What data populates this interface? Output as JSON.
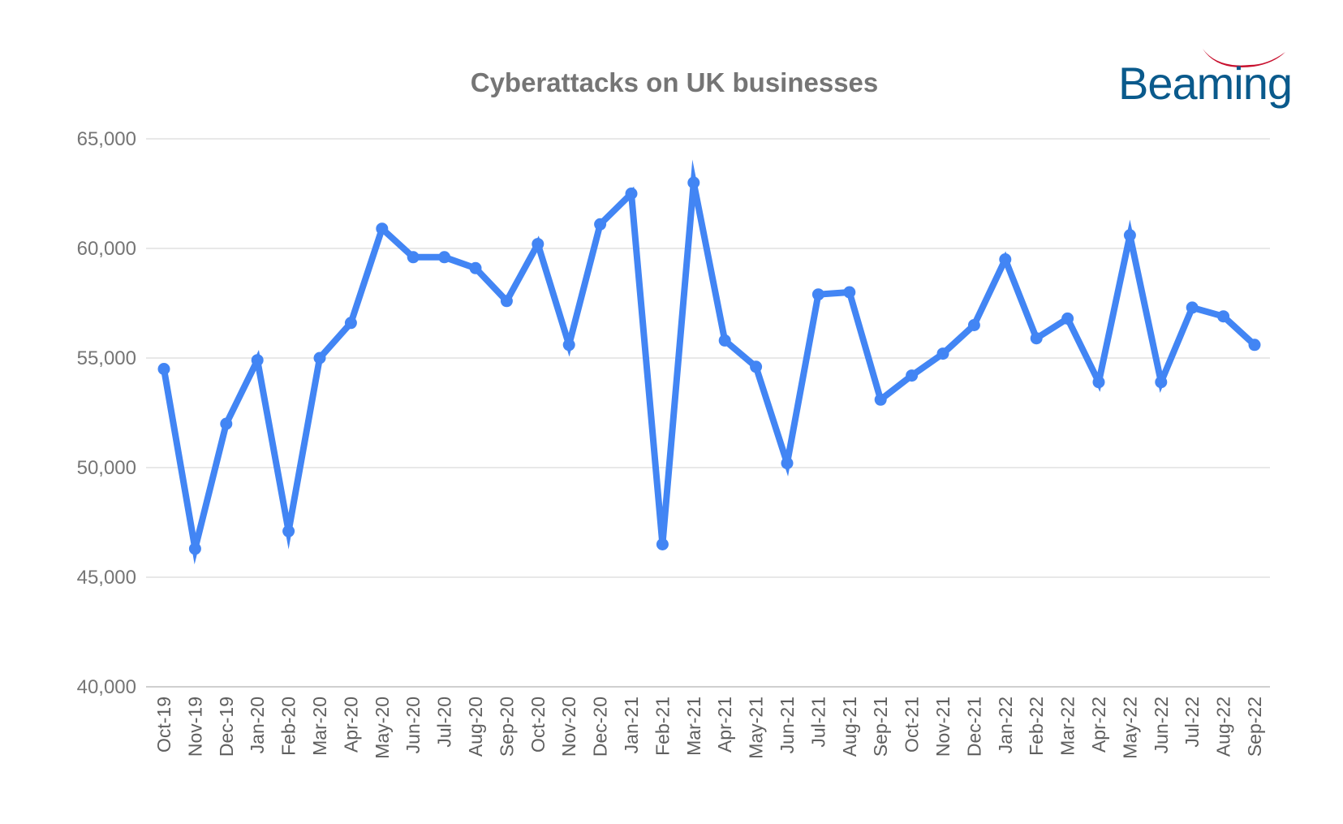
{
  "logo": {
    "text": "Beaming",
    "text_color": "#0a5a8c",
    "swoosh_color": "#c8102e"
  },
  "chart_data": {
    "type": "line",
    "title": "Cyberattacks on UK businesses",
    "xlabel": "",
    "ylabel": "",
    "ylim": [
      40000,
      65000
    ],
    "y_ticks": [
      "40,000",
      "45,000",
      "50,000",
      "55,000",
      "60,000",
      "65,000"
    ],
    "y_tick_values": [
      40000,
      45000,
      50000,
      55000,
      60000,
      65000
    ],
    "grid": true,
    "legend": "none",
    "categories": [
      "Oct-19",
      "Nov-19",
      "Dec-19",
      "Jan-20",
      "Feb-20",
      "Mar-20",
      "Apr-20",
      "May-20",
      "Jun-20",
      "Jul-20",
      "Aug-20",
      "Sep-20",
      "Oct-20",
      "Nov-20",
      "Dec-20",
      "Jan-21",
      "Feb-21",
      "Mar-21",
      "Apr-21",
      "May-21",
      "Jun-21",
      "Jul-21",
      "Aug-21",
      "Sep-21",
      "Oct-21",
      "Nov-21",
      "Dec-21",
      "Jan-22",
      "Feb-22",
      "Mar-22",
      "Apr-22",
      "May-22",
      "Jun-22",
      "Jul-22",
      "Aug-22",
      "Sep-22"
    ],
    "series": [
      {
        "color": "#4285f4",
        "values": [
          54500,
          46300,
          52000,
          54900,
          47100,
          55000,
          56600,
          60900,
          59600,
          59600,
          59100,
          57600,
          60200,
          55600,
          61100,
          62500,
          46500,
          63000,
          55800,
          54600,
          50200,
          57900,
          58000,
          53100,
          54200,
          55200,
          56500,
          59500,
          55900,
          56800,
          53900,
          60600,
          53900,
          57300,
          56900,
          55600
        ]
      }
    ]
  }
}
